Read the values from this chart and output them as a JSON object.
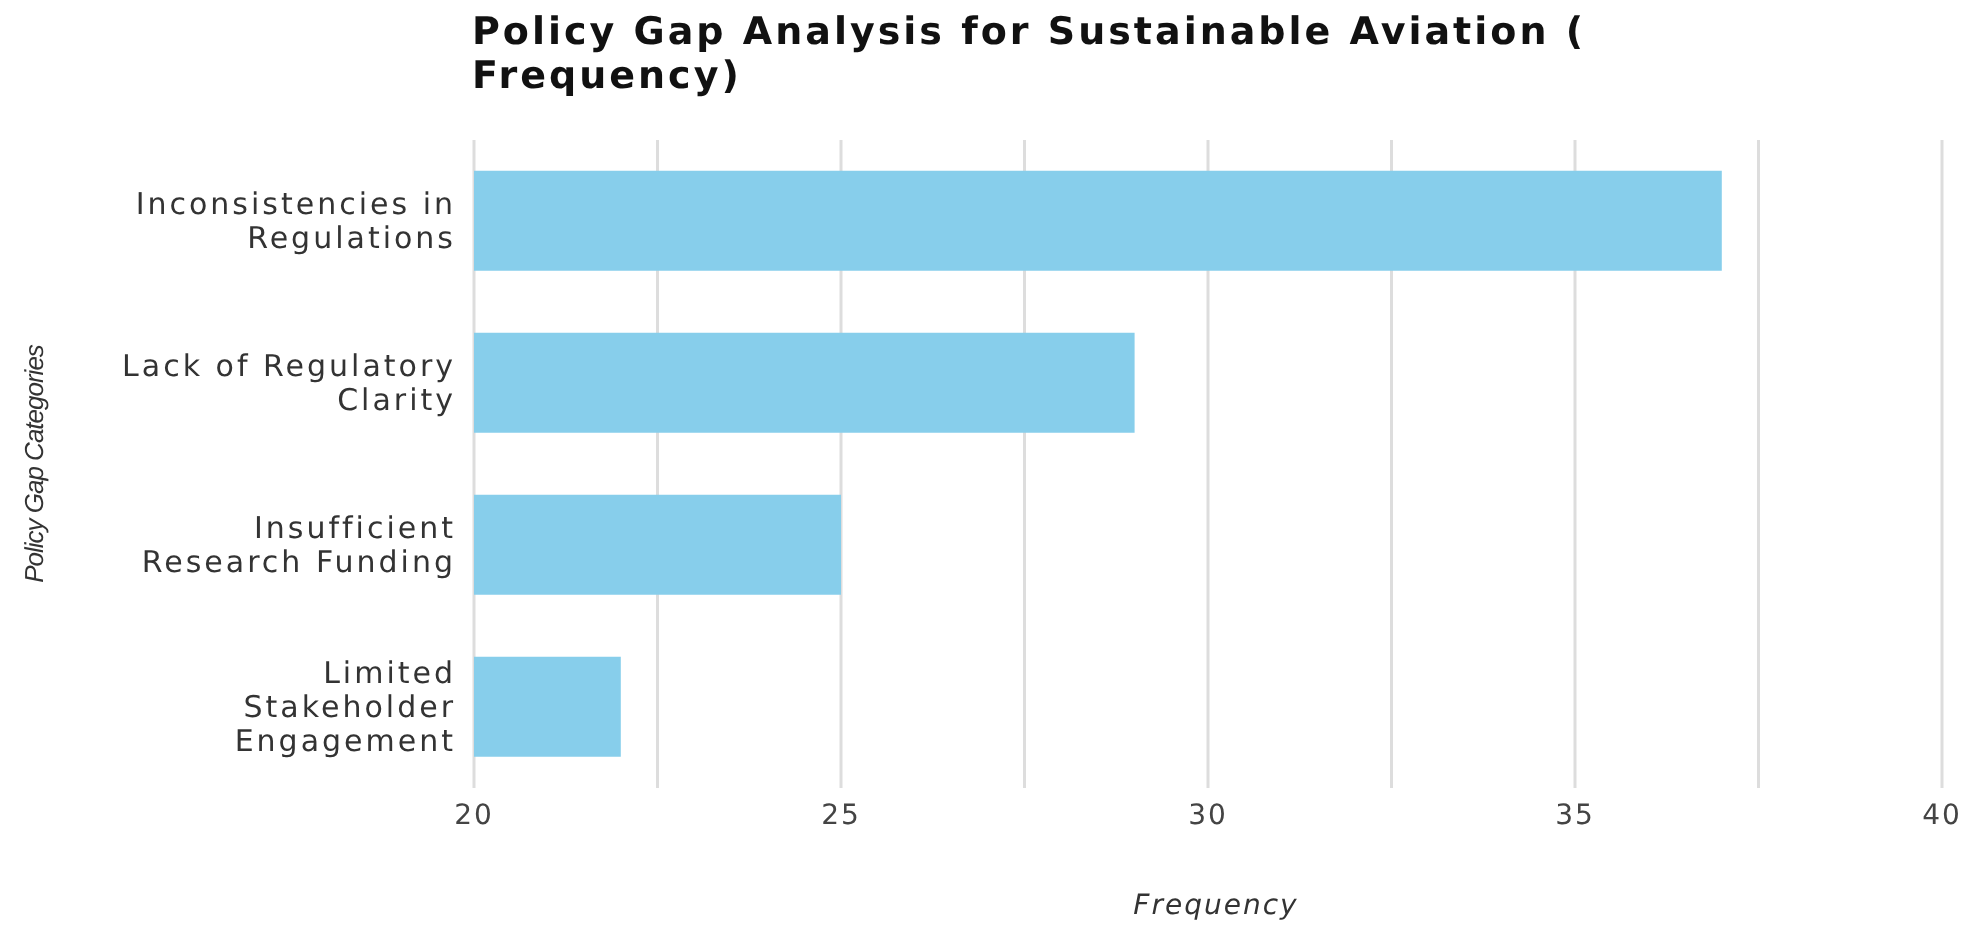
{
  "chart_data": {
    "type": "bar",
    "orientation": "horizontal",
    "title": "Policy Gap Analysis for Sustainable Aviation ( Frequency)",
    "xlabel": "Frequency",
    "ylabel": "Policy Gap Categories",
    "categories": [
      "Inconsistencies in Regulations",
      "Lack of Regulatory Clarity",
      "Insufficient Research Funding",
      "Limited Stakeholder Engagement"
    ],
    "values": [
      37,
      29,
      25,
      22
    ],
    "color": "#87ceeb",
    "xlim": [
      20,
      40
    ],
    "xticks": [
      20,
      {
        "value": 22.5,
        "label": null
      },
      25,
      {
        "value": 27.5,
        "label": null
      },
      30,
      {
        "value": 32.5,
        "label": null
      },
      35,
      {
        "value": 37.5,
        "label": null
      },
      40
    ],
    "grid": "x"
  }
}
